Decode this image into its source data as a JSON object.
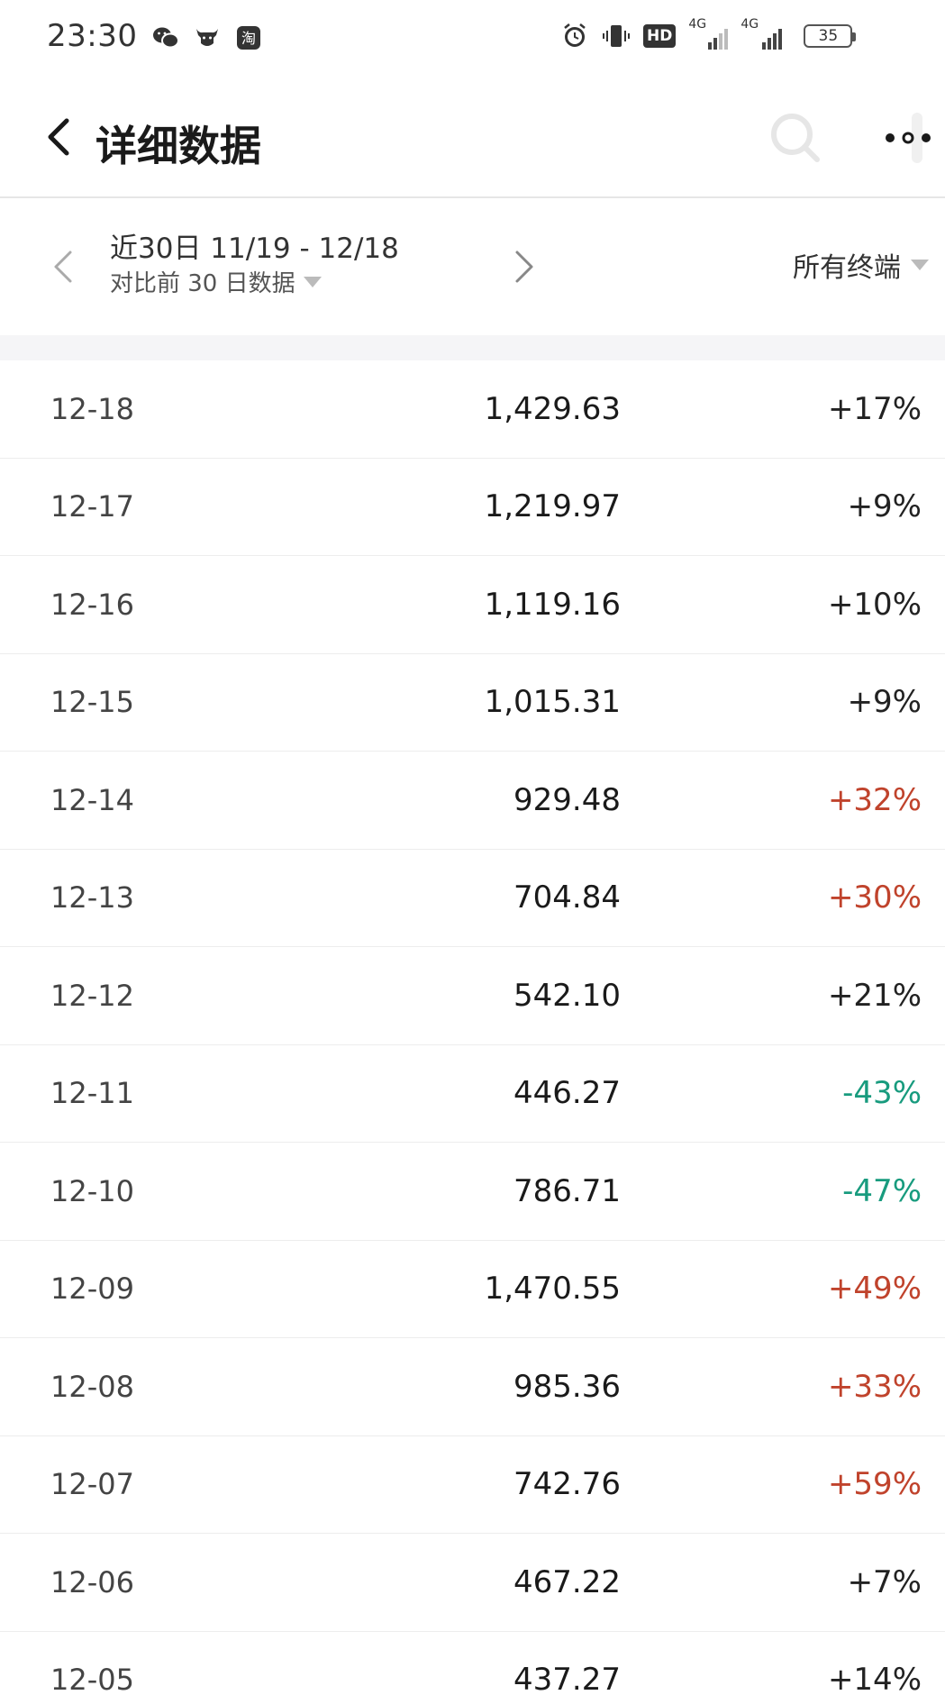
{
  "status_bar": {
    "time": "23:30",
    "left_icons": [
      "wechat-icon",
      "cow-app-icon",
      "taobao-icon"
    ],
    "taobao_glyph": "淘",
    "hd_label": "HD",
    "network_1": "4G",
    "network_2": "4G",
    "battery": "35"
  },
  "header": {
    "title": "详细数据"
  },
  "filter": {
    "range_label": "近30日 11/19 - 12/18",
    "compare_label": "对比前 30 日数据",
    "terminal_label": "所有终端"
  },
  "colors": {
    "up": "#c0432c",
    "down": "#189b7e",
    "neutral": "#222222"
  },
  "rows": [
    {
      "date": "12-18",
      "value": "1,429.63",
      "change": "+17%",
      "trend": "neutral"
    },
    {
      "date": "12-17",
      "value": "1,219.97",
      "change": "+9%",
      "trend": "neutral"
    },
    {
      "date": "12-16",
      "value": "1,119.16",
      "change": "+10%",
      "trend": "neutral"
    },
    {
      "date": "12-15",
      "value": "1,015.31",
      "change": "+9%",
      "trend": "neutral"
    },
    {
      "date": "12-14",
      "value": "929.48",
      "change": "+32%",
      "trend": "up"
    },
    {
      "date": "12-13",
      "value": "704.84",
      "change": "+30%",
      "trend": "up"
    },
    {
      "date": "12-12",
      "value": "542.10",
      "change": "+21%",
      "trend": "neutral"
    },
    {
      "date": "12-11",
      "value": "446.27",
      "change": "-43%",
      "trend": "down"
    },
    {
      "date": "12-10",
      "value": "786.71",
      "change": "-47%",
      "trend": "down"
    },
    {
      "date": "12-09",
      "value": "1,470.55",
      "change": "+49%",
      "trend": "up"
    },
    {
      "date": "12-08",
      "value": "985.36",
      "change": "+33%",
      "trend": "up"
    },
    {
      "date": "12-07",
      "value": "742.76",
      "change": "+59%",
      "trend": "up"
    },
    {
      "date": "12-06",
      "value": "467.22",
      "change": "+7%",
      "trend": "neutral"
    },
    {
      "date": "12-05",
      "value": "437.27",
      "change": "+14%",
      "trend": "neutral"
    }
  ]
}
